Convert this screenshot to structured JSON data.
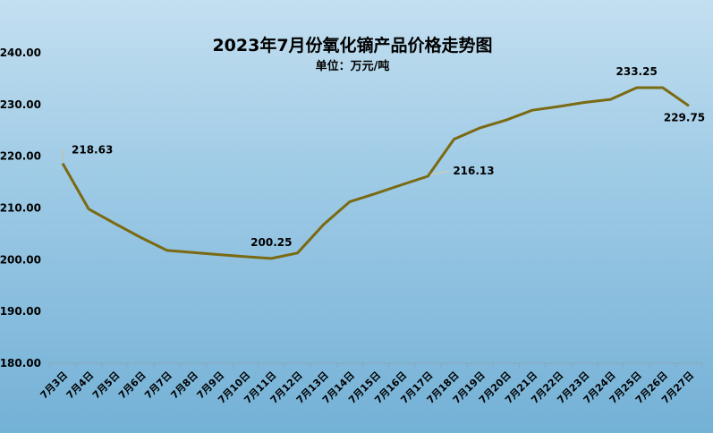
{
  "chart_data": {
    "type": "line",
    "title": "2023年7月份氧化镝产品价格走势图",
    "subtitle": "单位：万元/吨",
    "xlabel": "",
    "ylabel": "",
    "ylim": [
      180,
      240
    ],
    "y_ticks": [
      "180.00",
      "190.00",
      "200.00",
      "210.00",
      "220.00",
      "230.00",
      "240.00"
    ],
    "y_tick_values": [
      180,
      190,
      200,
      210,
      220,
      230,
      240
    ],
    "grid": false,
    "legend": "none",
    "line_color": "#7a6a12",
    "categories": [
      "7月3日",
      "7月4日",
      "7月5日",
      "7月6日",
      "7月7日",
      "7月8日",
      "7月9日",
      "7月10日",
      "7月11日",
      "7月12日",
      "7月13日",
      "7月14日",
      "7月15日",
      "7月16日",
      "7月17日",
      "7月18日",
      "7月19日",
      "7月20日",
      "7月21日",
      "7月22日",
      "7月23日",
      "7月24日",
      "7月25日",
      "7月26日",
      "7月27日"
    ],
    "series": [
      {
        "values": [
          218.63,
          209.8,
          207.0,
          204.3,
          201.8,
          201.4,
          201.0,
          200.6,
          200.25,
          201.3,
          206.8,
          211.2,
          212.8,
          214.5,
          216.13,
          223.3,
          225.5,
          227.0,
          228.9,
          229.6,
          230.4,
          231.0,
          233.25,
          233.25,
          229.75
        ]
      }
    ],
    "data_labels": [
      {
        "index": 0,
        "text": "218.63"
      },
      {
        "index": 8,
        "text": "200.25"
      },
      {
        "index": 14,
        "text": "216.13"
      },
      {
        "index": 22,
        "text": "233.25"
      },
      {
        "index": 24,
        "text": "229.75"
      }
    ]
  }
}
